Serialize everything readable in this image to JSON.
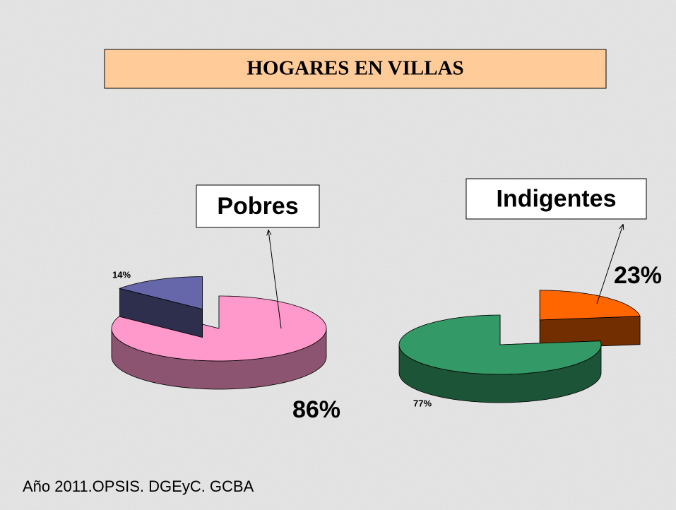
{
  "title": "HOGARES EN VILLAS",
  "source": "Año 2011.OPSIS. DGEyC. GCBA",
  "chart_data": [
    {
      "type": "pie",
      "annotation": "Pobres",
      "values": [
        86,
        14
      ],
      "value_labels": [
        "86%",
        "14%"
      ],
      "colors": [
        "#ff99cc",
        "#6666aa"
      ]
    },
    {
      "type": "pie",
      "annotation": "Indigentes",
      "values": [
        23,
        77
      ],
      "value_labels": [
        "23%",
        "77%"
      ],
      "colors": [
        "#ff6600",
        "#339966"
      ]
    }
  ]
}
